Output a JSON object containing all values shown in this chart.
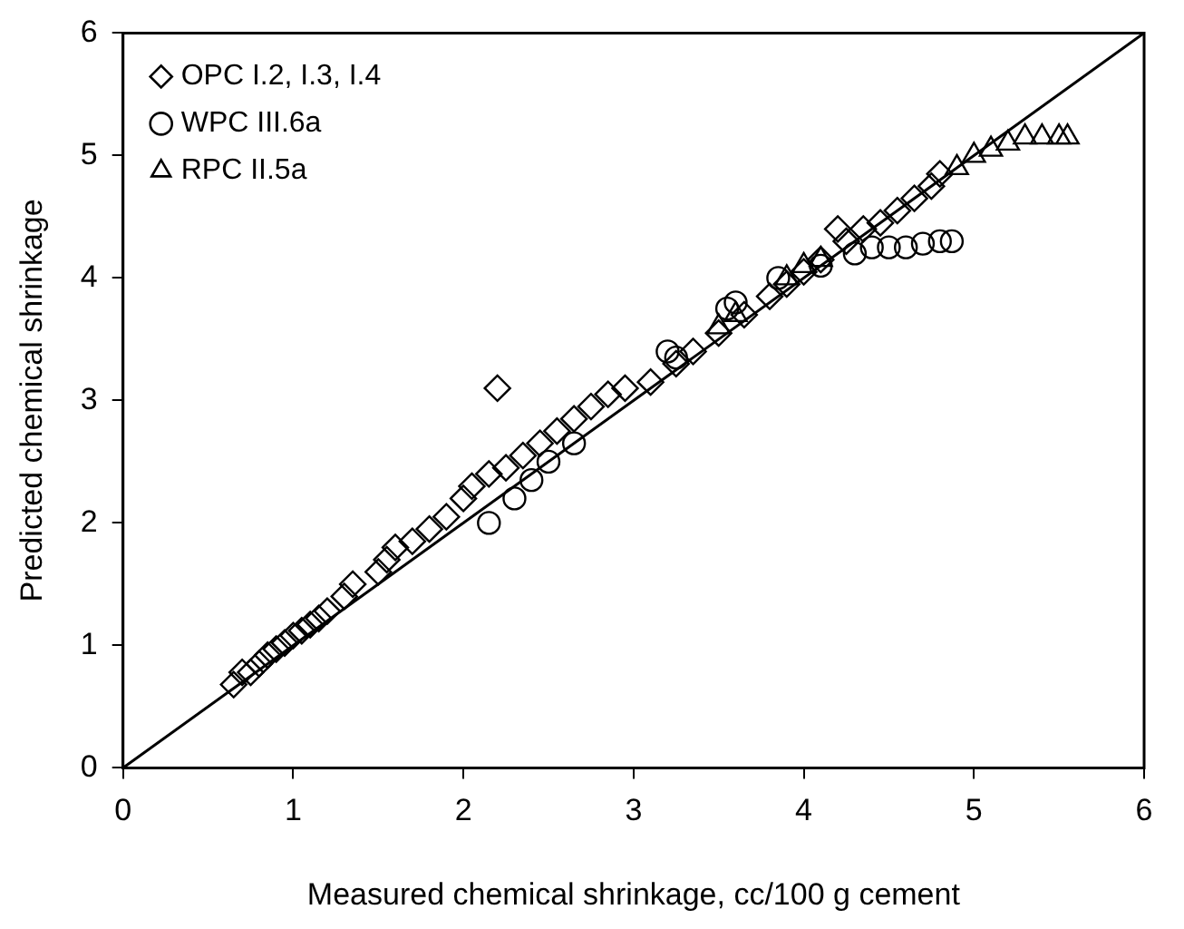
{
  "chart_data": {
    "type": "scatter",
    "xlabel": "Measured chemical shrinkage, cc/100 g cement",
    "ylabel": "Predicted chemical shrinkage",
    "xlim": [
      0,
      6
    ],
    "ylim": [
      0,
      6
    ],
    "xticks": [
      0,
      1,
      2,
      3,
      4,
      5,
      6
    ],
    "yticks": [
      0,
      1,
      2,
      3,
      4,
      5,
      6
    ],
    "grid": false,
    "legend": "top left",
    "series": [
      {
        "name": "OPC I.2, I.3, I.4",
        "color": "#000000",
        "marker": "diamond",
        "x": [
          0.65,
          0.7,
          0.75,
          0.8,
          0.85,
          0.9,
          0.95,
          1.0,
          1.05,
          1.1,
          1.15,
          1.2,
          1.3,
          1.35,
          1.5,
          1.55,
          1.6,
          1.7,
          1.8,
          1.9,
          2.0,
          2.05,
          2.15,
          2.2,
          2.25,
          2.35,
          2.45,
          2.55,
          2.65,
          2.75,
          2.85,
          2.95,
          3.1,
          3.25,
          3.35,
          3.5,
          3.65,
          3.8,
          3.9,
          4.0,
          4.1,
          4.2,
          4.25,
          4.35,
          4.45,
          4.55,
          4.65,
          4.75,
          4.8
        ],
        "values": [
          0.68,
          0.78,
          0.78,
          0.85,
          0.92,
          0.97,
          1.02,
          1.08,
          1.12,
          1.17,
          1.22,
          1.28,
          1.4,
          1.5,
          1.6,
          1.7,
          1.8,
          1.85,
          1.95,
          2.05,
          2.2,
          2.3,
          2.4,
          3.1,
          2.45,
          2.55,
          2.65,
          2.75,
          2.85,
          2.95,
          3.05,
          3.1,
          3.15,
          3.3,
          3.4,
          3.55,
          3.7,
          3.85,
          3.95,
          4.05,
          4.15,
          4.4,
          4.3,
          4.4,
          4.45,
          4.55,
          4.65,
          4.75,
          4.85
        ]
      },
      {
        "name": "WPC III.6a",
        "color": "#000000",
        "marker": "circle",
        "x": [
          2.15,
          2.3,
          2.4,
          2.5,
          2.65,
          3.2,
          3.25,
          3.55,
          3.6,
          3.85,
          4.1,
          4.3,
          4.4,
          4.5,
          4.6,
          4.7,
          4.8,
          4.87
        ],
        "values": [
          2.0,
          2.2,
          2.35,
          2.5,
          2.65,
          3.4,
          3.35,
          3.75,
          3.8,
          4.0,
          4.1,
          4.2,
          4.25,
          4.25,
          4.25,
          4.28,
          4.3,
          4.3
        ]
      },
      {
        "name": "RPC II.5a",
        "color": "#000000",
        "marker": "triangle",
        "x": [
          3.5,
          3.6,
          3.9,
          4.0,
          4.1,
          4.9,
          5.0,
          5.1,
          5.2,
          5.3,
          5.4,
          5.5,
          5.55
        ],
        "values": [
          3.6,
          3.7,
          4.0,
          4.1,
          4.15,
          4.9,
          5.0,
          5.05,
          5.1,
          5.15,
          5.15,
          5.15,
          5.15
        ]
      },
      {
        "type": "line",
        "color": "#000000",
        "marker": "none",
        "x": [
          0,
          6
        ],
        "values": [
          0,
          6
        ]
      }
    ]
  }
}
